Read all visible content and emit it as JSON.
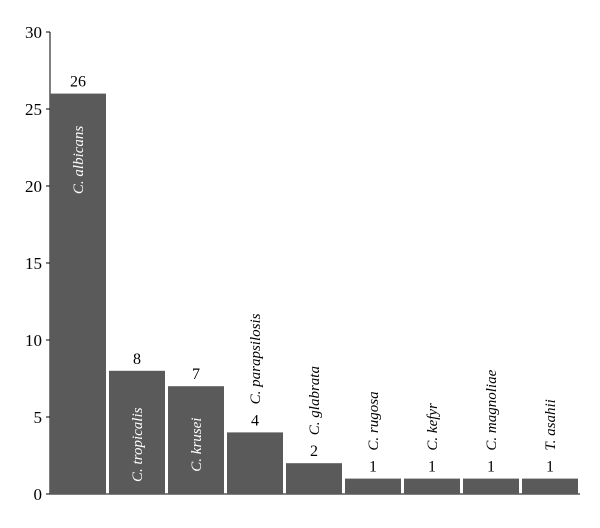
{
  "chart_data": {
    "type": "bar",
    "title": "",
    "xlabel": "",
    "ylabel": "",
    "ylim": [
      0,
      30
    ],
    "yticks": [
      0,
      5,
      10,
      15,
      20,
      25,
      30
    ],
    "grid": false,
    "legend": "none",
    "bar_color": "#5a5a5a",
    "categories": [
      "C. albicans",
      "C. tropicalis",
      "C. krusei",
      "C. parapsilosis",
      "C. glabrata",
      "C. rugosa",
      "C. kefyr",
      "C. magnoliae",
      "T. asahii"
    ],
    "values": [
      26,
      8,
      7,
      4,
      2,
      1,
      1,
      1,
      1
    ],
    "data_labels": [
      "26",
      "8",
      "7",
      "4",
      "2",
      "1",
      "1",
      "1",
      "1"
    ]
  }
}
